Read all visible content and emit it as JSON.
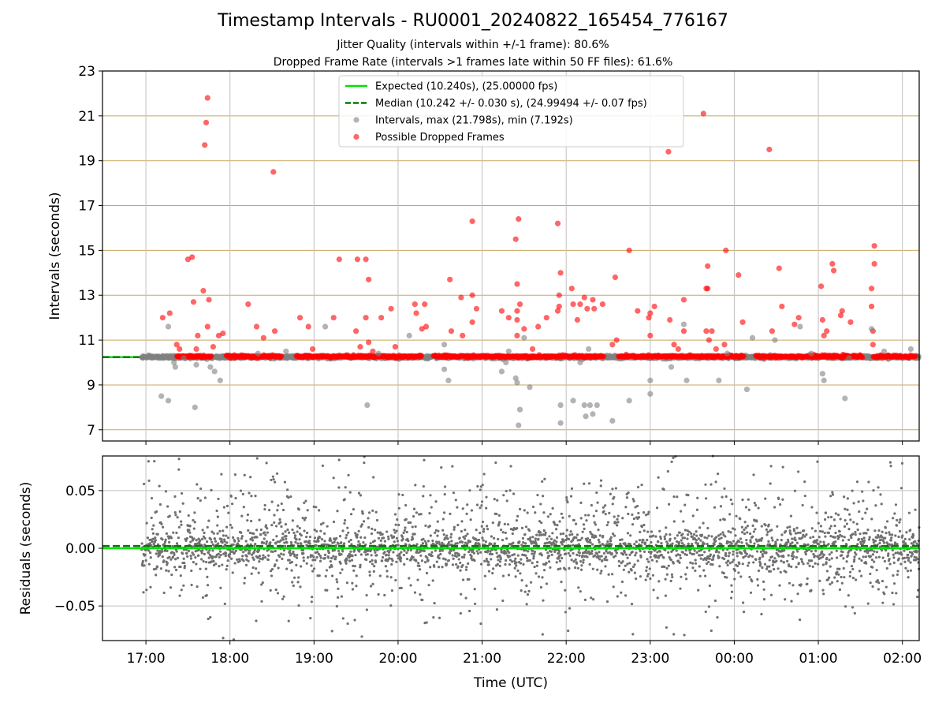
{
  "figure": {
    "title": "Timestamp Intervals - RU0001_20240822_165454_776167",
    "subtitle_1": "Jitter Quality (intervals within +/-1 frame): 80.6%",
    "subtitle_2": "Dropped Frame Rate (intervals >1 frames late within 50 FF files): 61.6%"
  },
  "colors": {
    "expected": "#00e000",
    "median": "#007a00",
    "intervals": "#808080",
    "dropped": "#ff0000",
    "hgrid": "#c8a860",
    "vgrid": "#c0c0c0"
  },
  "chart_data": [
    {
      "type": "scatter",
      "name": "intervals",
      "xlabel": "",
      "ylabel": "Intervals (seconds)",
      "xlim": [
        "16:29",
        "02:12"
      ],
      "ylim": [
        6.5,
        23
      ],
      "yticks": [
        7,
        9,
        11,
        13,
        15,
        17,
        19,
        21,
        23
      ],
      "grid": true,
      "legend_position": "top-center",
      "expected_interval_s": 10.24,
      "median_interval_s": 10.242,
      "legend": [
        {
          "key": "expected",
          "label": "Expected (10.240s), (25.00000 fps)"
        },
        {
          "key": "median",
          "label": "Median (10.242 +/- 0.030 s), (24.99494 +/- 0.07 fps)"
        },
        {
          "key": "intervals",
          "label": "Intervals, max (21.798s), min (7.192s)"
        },
        {
          "key": "dropped",
          "label": "Possible Dropped Frames"
        }
      ],
      "series": [
        {
          "name": "Possible Dropped Frames",
          "points": [
            [
              "17:12",
              12.0
            ],
            [
              "17:17",
              12.2
            ],
            [
              "17:22",
              10.8
            ],
            [
              "17:24",
              10.6
            ],
            [
              "17:30",
              14.6
            ],
            [
              "17:33",
              14.7
            ],
            [
              "17:34",
              12.7
            ],
            [
              "17:36",
              10.6
            ],
            [
              "17:37",
              11.2
            ],
            [
              "17:41",
              13.2
            ],
            [
              "17:42",
              19.7
            ],
            [
              "17:43",
              20.7
            ],
            [
              "17:44",
              21.8
            ],
            [
              "17:44",
              11.6
            ],
            [
              "17:45",
              12.8
            ],
            [
              "17:48",
              10.7
            ],
            [
              "17:52",
              11.2
            ],
            [
              "17:55",
              11.3
            ],
            [
              "18:13",
              12.6
            ],
            [
              "18:19",
              11.6
            ],
            [
              "18:24",
              11.1
            ],
            [
              "18:31",
              18.5
            ],
            [
              "18:32",
              11.4
            ],
            [
              "18:50",
              12.0
            ],
            [
              "18:56",
              11.6
            ],
            [
              "18:59",
              10.6
            ],
            [
              "19:14",
              12.0
            ],
            [
              "19:18",
              14.6
            ],
            [
              "19:30",
              11.4
            ],
            [
              "19:31",
              14.6
            ],
            [
              "19:33",
              10.7
            ],
            [
              "19:37",
              12.0
            ],
            [
              "19:37",
              14.6
            ],
            [
              "19:39",
              13.7
            ],
            [
              "19:39",
              10.9
            ],
            [
              "19:42",
              10.5
            ],
            [
              "19:48",
              12.0
            ],
            [
              "19:55",
              12.4
            ],
            [
              "19:58",
              10.7
            ],
            [
              "20:12",
              12.6
            ],
            [
              "20:13",
              12.2
            ],
            [
              "20:17",
              11.5
            ],
            [
              "20:19",
              12.6
            ],
            [
              "20:20",
              11.6
            ],
            [
              "20:37",
              13.7
            ],
            [
              "20:38",
              11.4
            ],
            [
              "20:45",
              12.9
            ],
            [
              "20:46",
              11.2
            ],
            [
              "20:53",
              16.3
            ],
            [
              "20:53",
              13.0
            ],
            [
              "20:53",
              11.8
            ],
            [
              "20:56",
              12.4
            ],
            [
              "21:14",
              12.3
            ],
            [
              "21:19",
              12.0
            ],
            [
              "21:24",
              15.5
            ],
            [
              "21:25",
              13.5
            ],
            [
              "21:25",
              12.3
            ],
            [
              "21:25",
              11.9
            ],
            [
              "21:25",
              11.2
            ],
            [
              "21:26",
              16.4
            ],
            [
              "21:27",
              12.6
            ],
            [
              "21:30",
              11.5
            ],
            [
              "21:36",
              10.6
            ],
            [
              "21:40",
              11.6
            ],
            [
              "21:46",
              12.0
            ],
            [
              "21:54",
              16.2
            ],
            [
              "21:54",
              12.3
            ],
            [
              "21:55",
              13.0
            ],
            [
              "21:55",
              12.5
            ],
            [
              "21:56",
              14.0
            ],
            [
              "22:04",
              13.3
            ],
            [
              "22:05",
              12.6
            ],
            [
              "22:08",
              11.9
            ],
            [
              "22:10",
              12.6
            ],
            [
              "22:13",
              12.9
            ],
            [
              "22:15",
              12.4
            ],
            [
              "22:19",
              12.8
            ],
            [
              "22:20",
              12.4
            ],
            [
              "22:26",
              12.6
            ],
            [
              "22:33",
              10.8
            ],
            [
              "22:35",
              13.8
            ],
            [
              "22:36",
              11.0
            ],
            [
              "22:45",
              15.0
            ],
            [
              "22:51",
              12.3
            ],
            [
              "22:59",
              12.0
            ],
            [
              "23:00",
              12.2
            ],
            [
              "23:00",
              11.2
            ],
            [
              "23:03",
              12.5
            ],
            [
              "23:13",
              19.4
            ],
            [
              "23:14",
              11.9
            ],
            [
              "23:17",
              10.8
            ],
            [
              "23:20",
              10.6
            ],
            [
              "23:24",
              12.8
            ],
            [
              "23:24",
              11.4
            ],
            [
              "23:38",
              21.1
            ],
            [
              "23:40",
              13.3
            ],
            [
              "23:41",
              13.3
            ],
            [
              "23:41",
              14.3
            ],
            [
              "23:40",
              11.4
            ],
            [
              "23:42",
              11.0
            ],
            [
              "23:44",
              11.4
            ],
            [
              "23:47",
              10.6
            ],
            [
              "23:53",
              10.8
            ],
            [
              "23:54",
              15.0
            ],
            [
              "00:03",
              13.9
            ],
            [
              "00:06",
              11.8
            ],
            [
              "00:25",
              19.5
            ],
            [
              "00:27",
              11.4
            ],
            [
              "00:32",
              14.2
            ],
            [
              "00:34",
              12.5
            ],
            [
              "00:43",
              11.7
            ],
            [
              "00:46",
              12.0
            ],
            [
              "01:02",
              13.4
            ],
            [
              "01:03",
              11.9
            ],
            [
              "01:04",
              11.2
            ],
            [
              "01:06",
              11.4
            ],
            [
              "01:10",
              14.4
            ],
            [
              "01:11",
              14.1
            ],
            [
              "01:16",
              12.1
            ],
            [
              "01:17",
              12.3
            ],
            [
              "01:23",
              11.8
            ],
            [
              "01:38",
              12.5
            ],
            [
              "01:38",
              13.3
            ],
            [
              "01:39",
              11.4
            ],
            [
              "01:40",
              15.2
            ],
            [
              "01:40",
              14.4
            ],
            [
              "01:39",
              10.8
            ]
          ]
        },
        {
          "name": "Intervals",
          "points": [
            [
              "17:11",
              8.5
            ],
            [
              "17:16",
              8.3
            ],
            [
              "17:20",
              10.0
            ],
            [
              "17:21",
              9.8
            ],
            [
              "17:27",
              10.2
            ],
            [
              "17:35",
              8.0
            ],
            [
              "17:36",
              9.9
            ],
            [
              "17:46",
              9.8
            ],
            [
              "17:49",
              9.6
            ],
            [
              "17:53",
              9.2
            ],
            [
              "17:16",
              11.6
            ],
            [
              "18:20",
              10.4
            ],
            [
              "18:40",
              10.5
            ],
            [
              "19:08",
              11.6
            ],
            [
              "19:38",
              8.1
            ],
            [
              "19:46",
              10.4
            ],
            [
              "20:08",
              11.2
            ],
            [
              "20:33",
              10.8
            ],
            [
              "20:33",
              9.7
            ],
            [
              "20:36",
              9.2
            ],
            [
              "21:14",
              9.6
            ],
            [
              "21:17",
              10.0
            ],
            [
              "21:19",
              10.5
            ],
            [
              "21:24",
              9.3
            ],
            [
              "21:25",
              9.1
            ],
            [
              "21:26",
              7.2
            ],
            [
              "21:27",
              7.9
            ],
            [
              "21:34",
              8.9
            ],
            [
              "21:30",
              11.1
            ],
            [
              "21:56",
              8.1
            ],
            [
              "21:56",
              7.3
            ],
            [
              "22:05",
              8.3
            ],
            [
              "22:10",
              10.0
            ],
            [
              "22:13",
              8.1
            ],
            [
              "22:14",
              7.6
            ],
            [
              "22:17",
              8.1
            ],
            [
              "22:19",
              7.7
            ],
            [
              "22:22",
              8.1
            ],
            [
              "22:16",
              10.6
            ],
            [
              "22:33",
              7.4
            ],
            [
              "22:45",
              8.3
            ],
            [
              "23:00",
              9.2
            ],
            [
              "23:00",
              8.6
            ],
            [
              "23:15",
              9.8
            ],
            [
              "23:24",
              11.7
            ],
            [
              "23:26",
              9.2
            ],
            [
              "23:49",
              9.2
            ],
            [
              "23:55",
              10.4
            ],
            [
              "00:09",
              8.8
            ],
            [
              "00:13",
              11.1
            ],
            [
              "00:29",
              11.0
            ],
            [
              "00:47",
              11.6
            ],
            [
              "00:55",
              10.4
            ],
            [
              "01:03",
              9.5
            ],
            [
              "01:04",
              9.2
            ],
            [
              "01:19",
              8.4
            ],
            [
              "01:22",
              10.2
            ],
            [
              "01:38",
              11.5
            ],
            [
              "01:47",
              10.5
            ],
            [
              "02:06",
              10.6
            ]
          ]
        }
      ]
    },
    {
      "type": "scatter",
      "name": "residuals",
      "xlabel": "Time (UTC)",
      "ylabel": "Residuals (seconds)",
      "xlim": [
        "16:29",
        "02:12"
      ],
      "ylim": [
        -0.08,
        0.08
      ],
      "yticks": [
        -0.05,
        0.0,
        0.05
      ],
      "ytick_labels": [
        "−0.05",
        "0.00",
        "0.05"
      ],
      "xticks": [
        "17:00",
        "18:00",
        "19:00",
        "20:00",
        "21:00",
        "22:00",
        "23:00",
        "00:00",
        "01:00",
        "02:00"
      ],
      "grid": true,
      "expected_residual_s": 0.0,
      "median_residual_s": 0.002,
      "data_start": "16:57",
      "data_end": "02:12",
      "series": [
        {
          "name": "Residuals",
          "spread_s": 0.03,
          "min_s": -0.08,
          "max_s": 0.08
        }
      ]
    }
  ]
}
